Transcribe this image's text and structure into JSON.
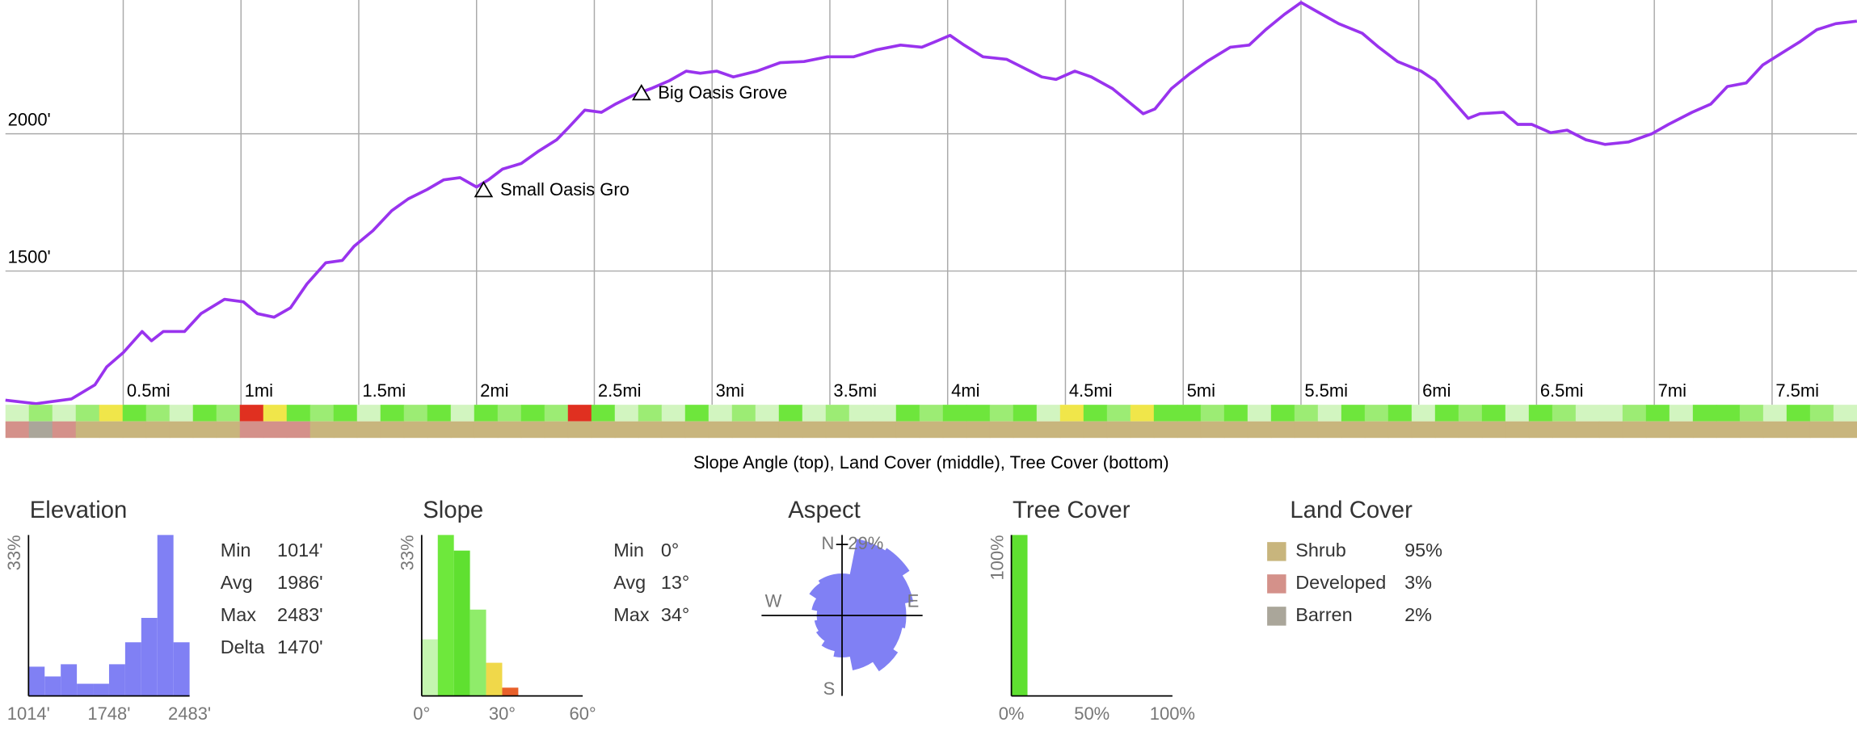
{
  "chart_data": [
    {
      "type": "line",
      "color": "#9933ee",
      "x": [
        0,
        0.13,
        0.28,
        0.38,
        0.43,
        0.5,
        0.58,
        0.62,
        0.67,
        0.76,
        0.83,
        0.93,
        1.01,
        1.07,
        1.14,
        1.21,
        1.28,
        1.36,
        1.43,
        1.48,
        1.56,
        1.64,
        1.71,
        1.79,
        1.86,
        1.93,
        2.0,
        2.05,
        2.11,
        2.19,
        2.26,
        2.34,
        2.39,
        2.46,
        2.53,
        2.59,
        2.67,
        2.74,
        2.82,
        2.89,
        2.95,
        3.02,
        3.09,
        3.19,
        3.29,
        3.39,
        3.49,
        3.6,
        3.7,
        3.8,
        3.89,
        3.95,
        4.01,
        4.07,
        4.15,
        4.25,
        4.32,
        4.4,
        4.46,
        4.54,
        4.61,
        4.7,
        4.78,
        4.83,
        4.88,
        4.95,
        5.03,
        5.1,
        5.2,
        5.28,
        5.35,
        5.43,
        5.5,
        5.57,
        5.66,
        5.76,
        5.83,
        5.91,
        6.01,
        6.07,
        6.13,
        6.21,
        6.26,
        6.36,
        6.42,
        6.48,
        6.56,
        6.63,
        6.71,
        6.79,
        6.89,
        6.99,
        7.06,
        7.16,
        7.24,
        7.31,
        7.39,
        7.46,
        7.54,
        7.62,
        7.69,
        7.77,
        7.86
      ],
      "values": [
        1030,
        1017,
        1034,
        1086,
        1151,
        1203,
        1280,
        1246,
        1280,
        1280,
        1345,
        1397,
        1388,
        1345,
        1332,
        1366,
        1453,
        1530,
        1539,
        1590,
        1647,
        1720,
        1763,
        1797,
        1832,
        1840,
        1806,
        1832,
        1871,
        1892,
        1935,
        1978,
        2022,
        2086,
        2078,
        2108,
        2142,
        2164,
        2194,
        2228,
        2220,
        2228,
        2207,
        2228,
        2259,
        2263,
        2280,
        2280,
        2306,
        2323,
        2315,
        2336,
        2358,
        2323,
        2280,
        2271,
        2241,
        2207,
        2198,
        2228,
        2207,
        2164,
        2108,
        2073,
        2090,
        2164,
        2220,
        2263,
        2315,
        2323,
        2379,
        2435,
        2478,
        2444,
        2401,
        2366,
        2315,
        2263,
        2228,
        2194,
        2134,
        2056,
        2073,
        2078,
        2034,
        2034,
        2004,
        2013,
        1978,
        1961,
        1970,
        2000,
        2034,
        2078,
        2108,
        2172,
        2185,
        2250,
        2293,
        2336,
        2379,
        2401,
        2410
      ],
      "xlim": [
        0,
        7.86
      ],
      "ylim": [
        1013,
        2487
      ],
      "xticks": [
        {
          "value": 0.5,
          "label": "0.5mi"
        },
        {
          "value": 1,
          "label": "1mi"
        },
        {
          "value": 1.5,
          "label": "1.5mi"
        },
        {
          "value": 2,
          "label": "2mi"
        },
        {
          "value": 2.5,
          "label": "2.5mi"
        },
        {
          "value": 3,
          "label": "3mi"
        },
        {
          "value": 3.5,
          "label": "3.5mi"
        },
        {
          "value": 4,
          "label": "4mi"
        },
        {
          "value": 4.5,
          "label": "4.5mi"
        },
        {
          "value": 5,
          "label": "5mi"
        },
        {
          "value": 5.5,
          "label": "5.5mi"
        },
        {
          "value": 6,
          "label": "6mi"
        },
        {
          "value": 6.5,
          "label": "6.5mi"
        },
        {
          "value": 7,
          "label": "7mi"
        },
        {
          "value": 7.5,
          "label": "7.5mi"
        }
      ],
      "yticks": [
        {
          "value": 1500,
          "label": "1500'"
        },
        {
          "value": 2000,
          "label": "2000'"
        }
      ],
      "grid": true,
      "annotations": [
        {
          "text": "Small Oasis Gro",
          "x": 2.03,
          "y": 1797
        },
        {
          "text": "Big Oasis Grove",
          "x": 2.7,
          "y": 2150
        }
      ],
      "slope_strip": [
        "#d2f5c0",
        "#9cec74",
        "#d2f5c0",
        "#9cec74",
        "#f0e64a",
        "#6ee63c",
        "#9cec74",
        "#d2f5c0",
        "#6ee63c",
        "#9cec74",
        "#e03020",
        "#f0e64a",
        "#6ee63c",
        "#9cec74",
        "#6ee63c",
        "#d2f5c0",
        "#6ee63c",
        "#9cec74",
        "#6ee63c",
        "#d2f5c0",
        "#6ee63c",
        "#9cec74",
        "#6ee63c",
        "#9cec74",
        "#e03020",
        "#6ee63c",
        "#d2f5c0",
        "#9cec74",
        "#d2f5c0",
        "#6ee63c",
        "#d2f5c0",
        "#9cec74",
        "#d2f5c0",
        "#6ee63c",
        "#d2f5c0",
        "#9cec74",
        "#d2f5c0",
        "#d2f5c0",
        "#6ee63c",
        "#9cec74",
        "#6ee63c",
        "#6ee63c",
        "#9cec74",
        "#6ee63c",
        "#d2f5c0",
        "#f0e64a",
        "#6ee63c",
        "#9cec74",
        "#f0e64a",
        "#6ee63c",
        "#6ee63c",
        "#9cec74",
        "#6ee63c",
        "#d2f5c0",
        "#6ee63c",
        "#9cec74",
        "#d2f5c0",
        "#6ee63c",
        "#9cec74",
        "#6ee63c",
        "#d2f5c0",
        "#6ee63c",
        "#9cec74",
        "#6ee63c",
        "#d2f5c0",
        "#6ee63c",
        "#9cec74",
        "#d2f5c0",
        "#d2f5c0",
        "#9cec74",
        "#6ee63c",
        "#d2f5c0",
        "#6ee63c",
        "#6ee63c",
        "#9cec74",
        "#d2f5c0",
        "#6ee63c",
        "#9cec74",
        "#d2f5c0"
      ],
      "land_cover_strip": [
        "#d4918a",
        "#aaa69a",
        "#d4918a",
        "#c8b57d",
        "#c8b57d",
        "#c8b57d",
        "#c8b57d",
        "#c8b57d",
        "#c8b57d",
        "#c8b57d",
        "#d4918a",
        "#d4918a",
        "#d4918a",
        "#c8b57d",
        "#c8b57d",
        "#c8b57d",
        "#c8b57d",
        "#c8b57d",
        "#c8b57d",
        "#c8b57d",
        "#c8b57d",
        "#c8b57d",
        "#c8b57d",
        "#c8b57d",
        "#c8b57d",
        "#c8b57d",
        "#c8b57d",
        "#c8b57d",
        "#c8b57d",
        "#c8b57d",
        "#c8b57d",
        "#c8b57d",
        "#c8b57d",
        "#c8b57d",
        "#c8b57d",
        "#c8b57d",
        "#c8b57d",
        "#c8b57d",
        "#c8b57d",
        "#c8b57d",
        "#c8b57d",
        "#c8b57d",
        "#c8b57d",
        "#c8b57d",
        "#c8b57d",
        "#c8b57d",
        "#c8b57d",
        "#c8b57d",
        "#c8b57d",
        "#c8b57d",
        "#c8b57d",
        "#c8b57d",
        "#c8b57d",
        "#c8b57d",
        "#c8b57d",
        "#c8b57d",
        "#c8b57d",
        "#c8b57d",
        "#c8b57d",
        "#c8b57d",
        "#c8b57d",
        "#c8b57d",
        "#c8b57d",
        "#c8b57d",
        "#c8b57d",
        "#c8b57d",
        "#c8b57d",
        "#c8b57d",
        "#c8b57d",
        "#c8b57d",
        "#c8b57d",
        "#c8b57d",
        "#c8b57d",
        "#c8b57d",
        "#c8b57d",
        "#c8b57d",
        "#c8b57d",
        "#c8b57d",
        "#c8b57d"
      ],
      "caption": "Slope Angle (top), Land Cover (middle), Tree Cover (bottom)"
    },
    {
      "type": "histogram",
      "title": "Elevation",
      "color": "#8080f4",
      "bins": [
        1014,
        1160.9,
        1307.8,
        1454.7,
        1601.6,
        1748.5,
        1895.4,
        2042.3,
        2189.2,
        2336.1,
        2483
      ],
      "values": [
        6,
        4,
        6.5,
        2.5,
        2.5,
        6.5,
        11,
        16,
        33,
        11
      ],
      "xlim": [
        1014,
        2483
      ],
      "ylim": [
        0,
        33
      ],
      "xticks": [
        {
          "value": 1014,
          "label": "1014'"
        },
        {
          "value": 1748,
          "label": "1748'"
        },
        {
          "value": 2483,
          "label": "2483'"
        }
      ],
      "yticks": [
        {
          "value": 33,
          "label": "33%"
        }
      ],
      "stats": [
        [
          "Min",
          "1014'"
        ],
        [
          "Avg",
          "1986'"
        ],
        [
          "Max",
          "2483'"
        ],
        [
          "Delta",
          "1470'"
        ]
      ]
    },
    {
      "type": "histogram",
      "title": "Slope",
      "colors": [
        "#c5f5b0",
        "#6ee83c",
        "#5fe030",
        "#8fec6a",
        "#f0d84a",
        "#e8602a"
      ],
      "bins": [
        0,
        6,
        12,
        18,
        24,
        30,
        36
      ],
      "values": [
        11.6,
        33,
        29.8,
        17.7,
        6.8,
        1.7
      ],
      "xlim": [
        0,
        60
      ],
      "ylim": [
        0,
        33
      ],
      "xticks": [
        {
          "value": 0,
          "label": "0°"
        },
        {
          "value": 30,
          "label": "30°"
        },
        {
          "value": 60,
          "label": "60°"
        }
      ],
      "yticks": [
        {
          "value": 33,
          "label": "33%"
        }
      ],
      "stats": [
        [
          "Min",
          "0°"
        ],
        [
          "Avg",
          "13°"
        ],
        [
          "Max",
          "34°"
        ]
      ]
    },
    {
      "type": "rose",
      "title": "Aspect",
      "color": "#8080f4",
      "values": [
        15,
        28,
        29,
        26,
        23,
        22,
        24,
        20,
        15,
        13,
        11,
        10,
        9,
        11,
        14,
        15
      ],
      "rlim": [
        0,
        29
      ],
      "rticks": [
        {
          "value": 29,
          "label": "29%"
        }
      ],
      "directions": [
        "N",
        "E",
        "S",
        "W"
      ]
    },
    {
      "type": "histogram",
      "title": "Tree Cover",
      "color": "#5fe030",
      "bins": [
        0,
        10
      ],
      "values": [
        100
      ],
      "xlim": [
        0,
        100
      ],
      "ylim": [
        0,
        100
      ],
      "xticks": [
        {
          "value": 0,
          "label": "0%"
        },
        {
          "value": 50,
          "label": "50%"
        },
        {
          "value": 100,
          "label": "100%"
        }
      ],
      "yticks": [
        {
          "value": 100,
          "label": "100%"
        }
      ]
    },
    {
      "type": "legend",
      "title": "Land Cover",
      "categories": [
        "Shrub",
        "Developed",
        "Barren"
      ],
      "values": [
        95,
        3,
        2
      ],
      "value_labels": [
        "95%",
        "3%",
        "2%"
      ],
      "colors": [
        "#c8b57d",
        "#d4918a",
        "#aaa69a"
      ]
    }
  ]
}
